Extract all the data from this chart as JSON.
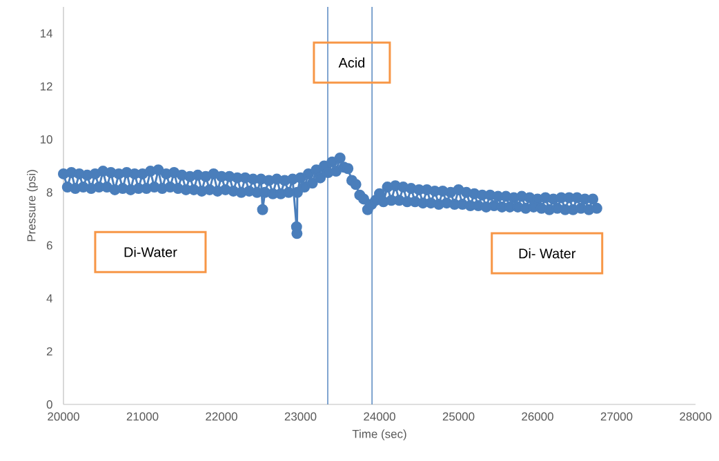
{
  "chart_data": {
    "type": "line",
    "xlabel": "Time (sec)",
    "ylabel": "Pressure (psi)",
    "xlim": [
      20000,
      28000
    ],
    "xticks": [
      20000,
      21000,
      22000,
      23000,
      24000,
      25000,
      26000,
      27000,
      28000
    ],
    "ylim": [
      0,
      15
    ],
    "yticks": [
      0,
      2,
      4,
      6,
      8,
      10,
      12,
      14
    ],
    "marker": "circle",
    "series": [
      {
        "color": "#4a7ebb",
        "x": [
          20000,
          20050,
          20100,
          20150,
          20200,
          20250,
          20300,
          20350,
          20400,
          20450,
          20500,
          20550,
          20600,
          20650,
          20700,
          20750,
          20800,
          20850,
          20900,
          20950,
          21000,
          21050,
          21100,
          21150,
          21200,
          21250,
          21300,
          21350,
          21400,
          21450,
          21500,
          21550,
          21600,
          21650,
          21700,
          21750,
          21800,
          21850,
          21900,
          21950,
          22000,
          22050,
          22100,
          22150,
          22200,
          22250,
          22300,
          22350,
          22400,
          22450,
          22500,
          22520,
          22550,
          22600,
          22650,
          22700,
          22750,
          22800,
          22850,
          22900,
          22950,
          22955,
          22960,
          23000,
          23050,
          23100,
          23150,
          23200,
          23250,
          23300,
          23350,
          23400,
          23450,
          23500,
          23550,
          23600,
          23650,
          23700,
          23750,
          23800,
          23850,
          23900,
          23950,
          24000,
          24050,
          24100,
          24150,
          24200,
          24250,
          24300,
          24350,
          24400,
          24450,
          24500,
          24550,
          24600,
          24650,
          24700,
          24750,
          24800,
          24850,
          24900,
          24950,
          25000,
          25050,
          25100,
          25150,
          25200,
          25250,
          25300,
          25350,
          25400,
          25450,
          25500,
          25550,
          25600,
          25650,
          25700,
          25750,
          25800,
          25850,
          25900,
          25950,
          26000,
          26050,
          26100,
          26150,
          26200,
          26250,
          26300,
          26350,
          26400,
          26450,
          26500,
          26550,
          26600,
          26650,
          26700,
          26750
        ],
        "values": [
          8.7,
          8.2,
          8.75,
          8.15,
          8.7,
          8.2,
          8.65,
          8.15,
          8.7,
          8.2,
          8.8,
          8.2,
          8.75,
          8.1,
          8.7,
          8.15,
          8.75,
          8.1,
          8.7,
          8.15,
          8.7,
          8.15,
          8.8,
          8.2,
          8.85,
          8.15,
          8.7,
          8.2,
          8.75,
          8.15,
          8.65,
          8.1,
          8.6,
          8.1,
          8.65,
          8.05,
          8.6,
          8.1,
          8.7,
          8.05,
          8.6,
          8.1,
          8.6,
          8.05,
          8.55,
          8.0,
          8.55,
          8.05,
          8.5,
          8.0,
          8.5,
          7.35,
          8.0,
          8.45,
          7.95,
          8.5,
          7.95,
          8.45,
          8.0,
          8.5,
          6.7,
          6.45,
          8.0,
          8.55,
          8.2,
          8.7,
          8.35,
          8.85,
          8.55,
          9.0,
          8.75,
          9.15,
          8.8,
          9.3,
          8.95,
          8.9,
          8.45,
          8.3,
          7.9,
          7.75,
          7.35,
          7.55,
          7.7,
          7.95,
          7.65,
          8.2,
          7.7,
          8.25,
          7.7,
          8.2,
          7.65,
          8.15,
          7.65,
          8.1,
          7.6,
          8.1,
          7.6,
          8.05,
          7.55,
          8.05,
          7.6,
          8.0,
          7.55,
          8.1,
          7.55,
          8.0,
          7.5,
          7.95,
          7.5,
          7.9,
          7.45,
          7.9,
          7.5,
          7.85,
          7.45,
          7.85,
          7.45,
          7.8,
          7.45,
          7.85,
          7.4,
          7.8,
          7.45,
          7.75,
          7.4,
          7.8,
          7.35,
          7.75,
          7.4,
          7.8,
          7.35,
          7.8,
          7.35,
          7.8,
          7.4,
          7.75,
          7.35,
          7.75,
          7.4
        ]
      }
    ],
    "ref_lines": [
      {
        "axis": "x",
        "value": 23345,
        "color": "#4a7ebb"
      },
      {
        "axis": "x",
        "value": 23905,
        "color": "#4a7ebb"
      }
    ],
    "annotations": [
      "Acid",
      "Di-Water",
      "Di- Water"
    ]
  }
}
